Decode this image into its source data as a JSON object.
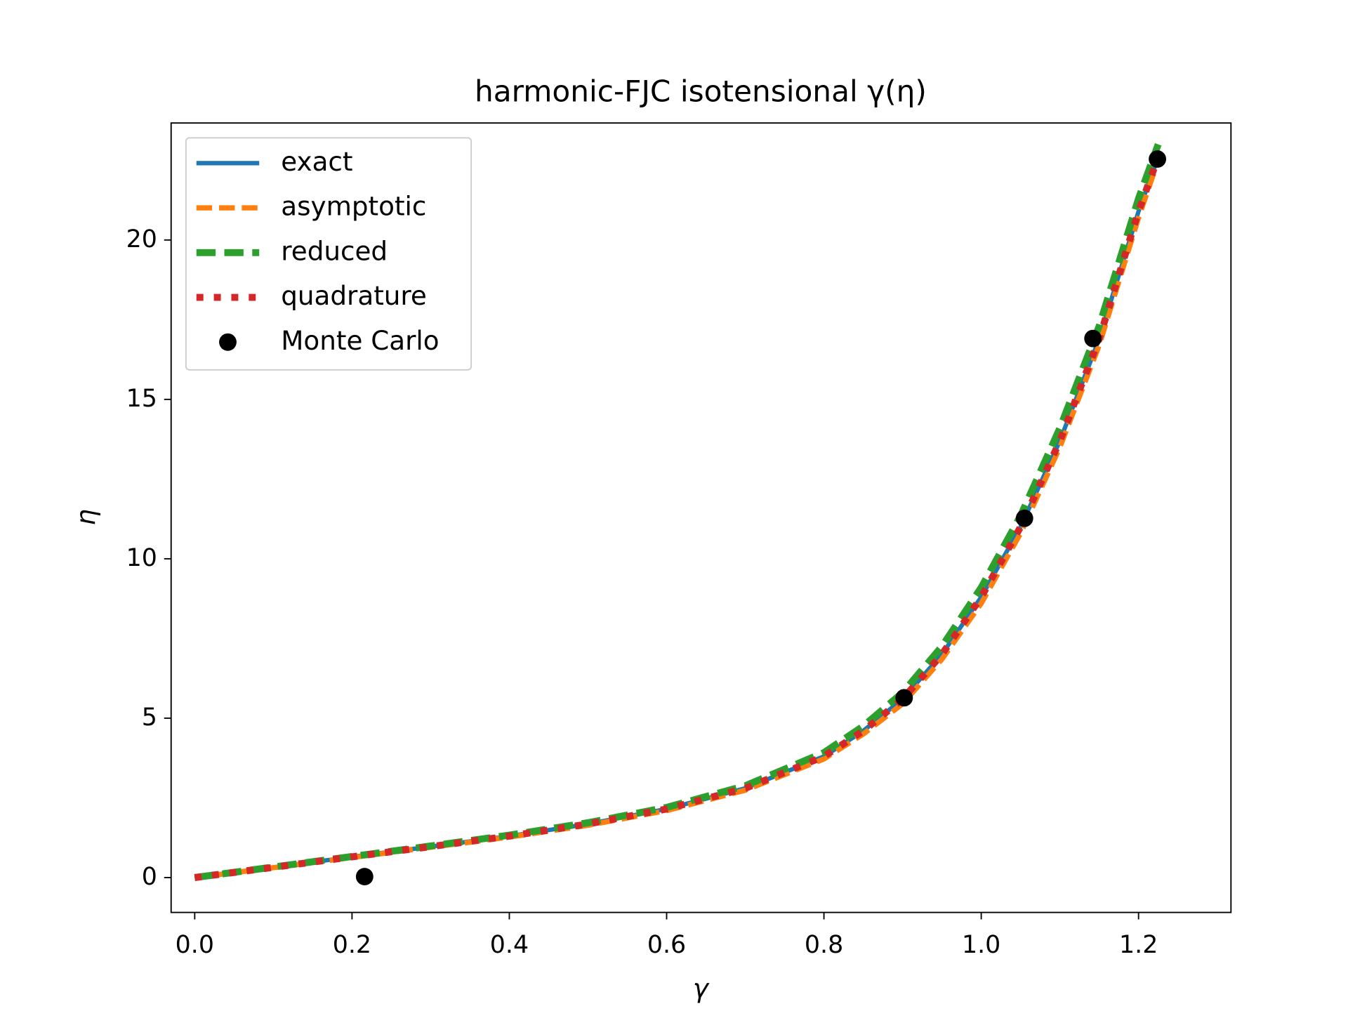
{
  "chart_data": {
    "type": "line",
    "title": "harmonic-FJC isotensional γ(η)",
    "xlabel": "γ",
    "ylabel": "η",
    "xlim": [
      -0.03,
      1.3175
    ],
    "ylim": [
      -1.094,
      23.67
    ],
    "xticks": [
      {
        "value": 0,
        "label": "0.0"
      },
      0.2,
      0.4,
      0.6,
      0.8,
      {
        "value": 1,
        "label": "1.0"
      },
      1.2
    ],
    "yticks": [
      0,
      5,
      10,
      15,
      20
    ],
    "legend": "upper left",
    "series": [
      {
        "name": "exact",
        "color": "#1f77b4",
        "linestyle": "solid",
        "x": [
          0,
          0.1,
          0.2,
          0.3,
          0.4,
          0.5,
          0.6,
          0.7,
          0.8,
          0.85,
          0.9,
          0.95,
          1.0,
          1.05,
          1.1,
          1.15,
          1.2,
          1.225
        ],
        "values": [
          0,
          0.32,
          0.65,
          0.97,
          1.3,
          1.68,
          2.15,
          2.8,
          3.8,
          4.6,
          5.6,
          7.0,
          8.8,
          11.0,
          13.7,
          16.9,
          20.9,
          22.6
        ]
      },
      {
        "name": "asymptotic",
        "color": "#ff7f0e",
        "linestyle": "dashed",
        "x": [
          0,
          0.1,
          0.2,
          0.3,
          0.4,
          0.5,
          0.6,
          0.7,
          0.8,
          0.85,
          0.9,
          0.95,
          1.0,
          1.05,
          1.1,
          1.15,
          1.2,
          1.225
        ],
        "values": [
          0,
          0.31,
          0.63,
          0.95,
          1.27,
          1.64,
          2.1,
          2.74,
          3.72,
          4.5,
          5.45,
          6.85,
          8.6,
          10.8,
          13.5,
          16.7,
          20.7,
          22.5
        ]
      },
      {
        "name": "reduced",
        "color": "#2ca02c",
        "linestyle": "dashed",
        "x": [
          0,
          0.1,
          0.2,
          0.3,
          0.4,
          0.5,
          0.6,
          0.7,
          0.8,
          0.85,
          0.9,
          0.95,
          1.0,
          1.05,
          1.1,
          1.15,
          1.2,
          1.225
        ],
        "values": [
          0,
          0.33,
          0.66,
          0.99,
          1.33,
          1.72,
          2.2,
          2.88,
          3.92,
          4.75,
          5.8,
          7.25,
          9.1,
          11.35,
          14.1,
          17.3,
          21.3,
          23.0
        ]
      },
      {
        "name": "quadrature",
        "color": "#d62728",
        "linestyle": "dotted",
        "x": [
          0,
          0.1,
          0.2,
          0.3,
          0.4,
          0.5,
          0.6,
          0.7,
          0.8,
          0.85,
          0.9,
          0.95,
          1.0,
          1.05,
          1.1,
          1.15,
          1.2,
          1.225
        ],
        "values": [
          0,
          0.32,
          0.65,
          0.97,
          1.3,
          1.68,
          2.15,
          2.8,
          3.8,
          4.6,
          5.6,
          7.0,
          8.8,
          11.0,
          13.7,
          16.9,
          20.9,
          22.6
        ]
      },
      {
        "name": "Monte Carlo",
        "color": "#000000",
        "linestyle": "none",
        "marker": "o",
        "x": [
          0.216,
          0.902,
          1.055,
          1.142,
          1.224
        ],
        "values": [
          0.03,
          5.64,
          11.27,
          16.91,
          22.54
        ]
      }
    ]
  }
}
